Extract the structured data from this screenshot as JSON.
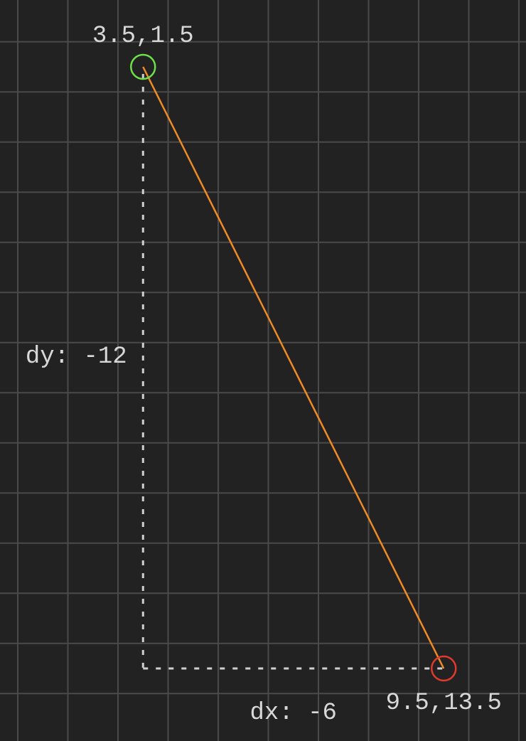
{
  "start_point": {
    "label": "3.5,1.5",
    "x": 3.5,
    "y": 1.5,
    "color": "#6ee04a"
  },
  "end_point": {
    "label": "9.5,13.5",
    "x": 9.5,
    "y": 13.5,
    "color": "#e03a2e"
  },
  "segment": {
    "color": "#f08a24"
  },
  "guides": {
    "color": "#d0d0d0"
  },
  "dy_label": "dy: -12",
  "dx_label": "dx: -6",
  "grid": {
    "visible": true,
    "line_color": "#4a4a4a",
    "background": "#222222"
  }
}
